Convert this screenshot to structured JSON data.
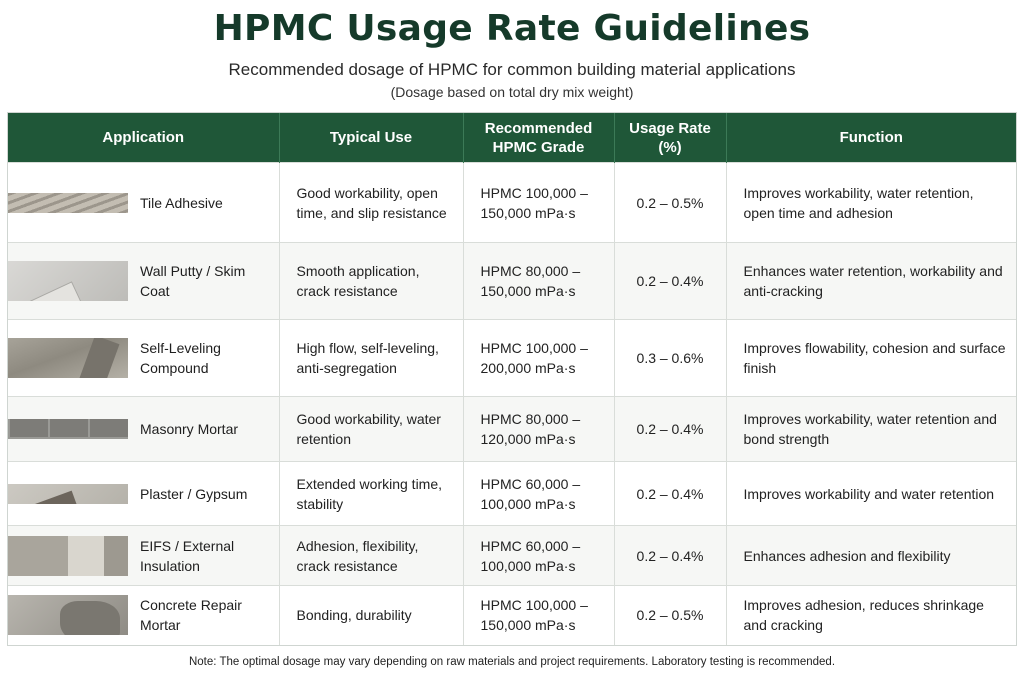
{
  "header": {
    "title": "HPMC Usage Rate Guidelines",
    "subtitle": "Recommended dosage of HPMC for common building material applications",
    "basis_note": "(Dosage based on total dry mix weight)"
  },
  "table": {
    "columns": [
      {
        "label": "Application"
      },
      {
        "label": "Typical Use"
      },
      {
        "label": "Recommended HPMC Grade"
      },
      {
        "label": "Usage Rate (%)"
      },
      {
        "label": "Function"
      }
    ],
    "rows": [
      {
        "image": "tile-adhesive-photo",
        "application": "Tile Adhesive",
        "typical_use": "Good workability, open time, and slip resistance",
        "grade": "HPMC 100,000 – 150,000 mPa·s",
        "rate": "0.2 – 0.5%",
        "function": "Improves workability, water retention, open time and adhesion"
      },
      {
        "image": "wall-putty-photo",
        "application": "Wall Putty / Skim Coat",
        "typical_use": "Smooth application, crack resistance",
        "grade": "HPMC 80,000 – 150,000 mPa·s",
        "rate": "0.2 – 0.4%",
        "function": "Enhances water retention, workability and anti-cracking"
      },
      {
        "image": "self-leveling-photo",
        "application": "Self-Leveling Compound",
        "typical_use": "High flow, self-leveling, anti-segregation",
        "grade": "HPMC 100,000 – 200,000 mPa·s",
        "rate": "0.3 – 0.6%",
        "function": "Improves flowability, cohesion and surface finish"
      },
      {
        "image": "masonry-mortar-photo",
        "application": "Masonry Mortar",
        "typical_use": "Good workability, water retention",
        "grade": "HPMC 80,000 – 120,000 mPa·s",
        "rate": "0.2 – 0.4%",
        "function": "Improves workability, water retention and bond strength"
      },
      {
        "image": "plaster-gypsum-photo",
        "application": "Plaster / Gypsum",
        "typical_use": "Extended working time, stability",
        "grade": "HPMC 60,000 – 100,000 mPa·s",
        "rate": "0.2 – 0.4%",
        "function": "Improves workability and water retention"
      },
      {
        "image": "eifs-insulation-photo",
        "application": "EIFS / External Insulation",
        "typical_use": "Adhesion, flexibility, crack resistance",
        "grade": "HPMC 60,000 – 100,000 mPa·s",
        "rate": "0.2 – 0.4%",
        "function": "Enhances adhesion and flexibility"
      },
      {
        "image": "concrete-repair-photo",
        "application": "Concrete Repair Mortar",
        "typical_use": "Bonding, durability",
        "grade": "HPMC 100,000 – 150,000 mPa·s",
        "rate": "0.2 – 0.5%",
        "function": "Improves adhesion, reduces shrinkage and cracking"
      }
    ]
  },
  "footer": {
    "note": "Note: The optimal dosage may vary depending on raw materials and project requirements. Laboratory testing is recommended."
  },
  "colors": {
    "header_bg": "#1f5738",
    "title_color": "#153a2a"
  }
}
